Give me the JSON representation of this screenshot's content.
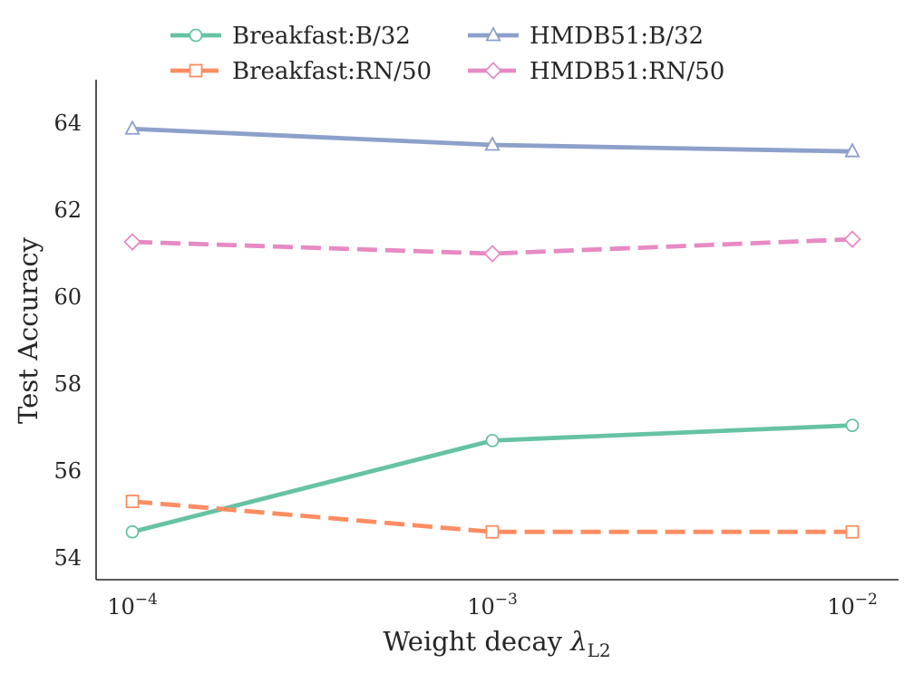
{
  "chart_data": {
    "type": "line",
    "xscale": "log",
    "x": [
      0.0001,
      0.001,
      0.01
    ],
    "x_ticks": [
      {
        "base": "10",
        "exp": "−4"
      },
      {
        "base": "10",
        "exp": "−3"
      },
      {
        "base": "10",
        "exp": "−2"
      }
    ],
    "xlabel": {
      "text": "Weight decay ",
      "symbol": "λ",
      "subscript": "L2"
    },
    "ylabel": "Test Accuracy",
    "ylim": [
      53.5,
      65
    ],
    "yticks": [
      "54",
      "56",
      "58",
      "60",
      "62",
      "64"
    ],
    "legend_position": "top",
    "series": [
      {
        "name": "Breakfast:B/32",
        "values": [
          54.6,
          56.7,
          57.05
        ],
        "color": "#66c2a5",
        "linestyle": "solid",
        "marker": "circle"
      },
      {
        "name": "HMDB51:B/32",
        "values": [
          63.87,
          63.5,
          63.35
        ],
        "color": "#8da0cb",
        "linestyle": "solid",
        "marker": "triangle"
      },
      {
        "name": "Breakfast:RN/50",
        "values": [
          55.3,
          54.6,
          54.6
        ],
        "color": "#fc8d62",
        "linestyle": "dashed",
        "marker": "square"
      },
      {
        "name": "HMDB51:RN/50",
        "values": [
          61.27,
          61.0,
          61.33
        ],
        "color": "#e78ac3",
        "linestyle": "dashed",
        "marker": "diamond"
      }
    ]
  }
}
